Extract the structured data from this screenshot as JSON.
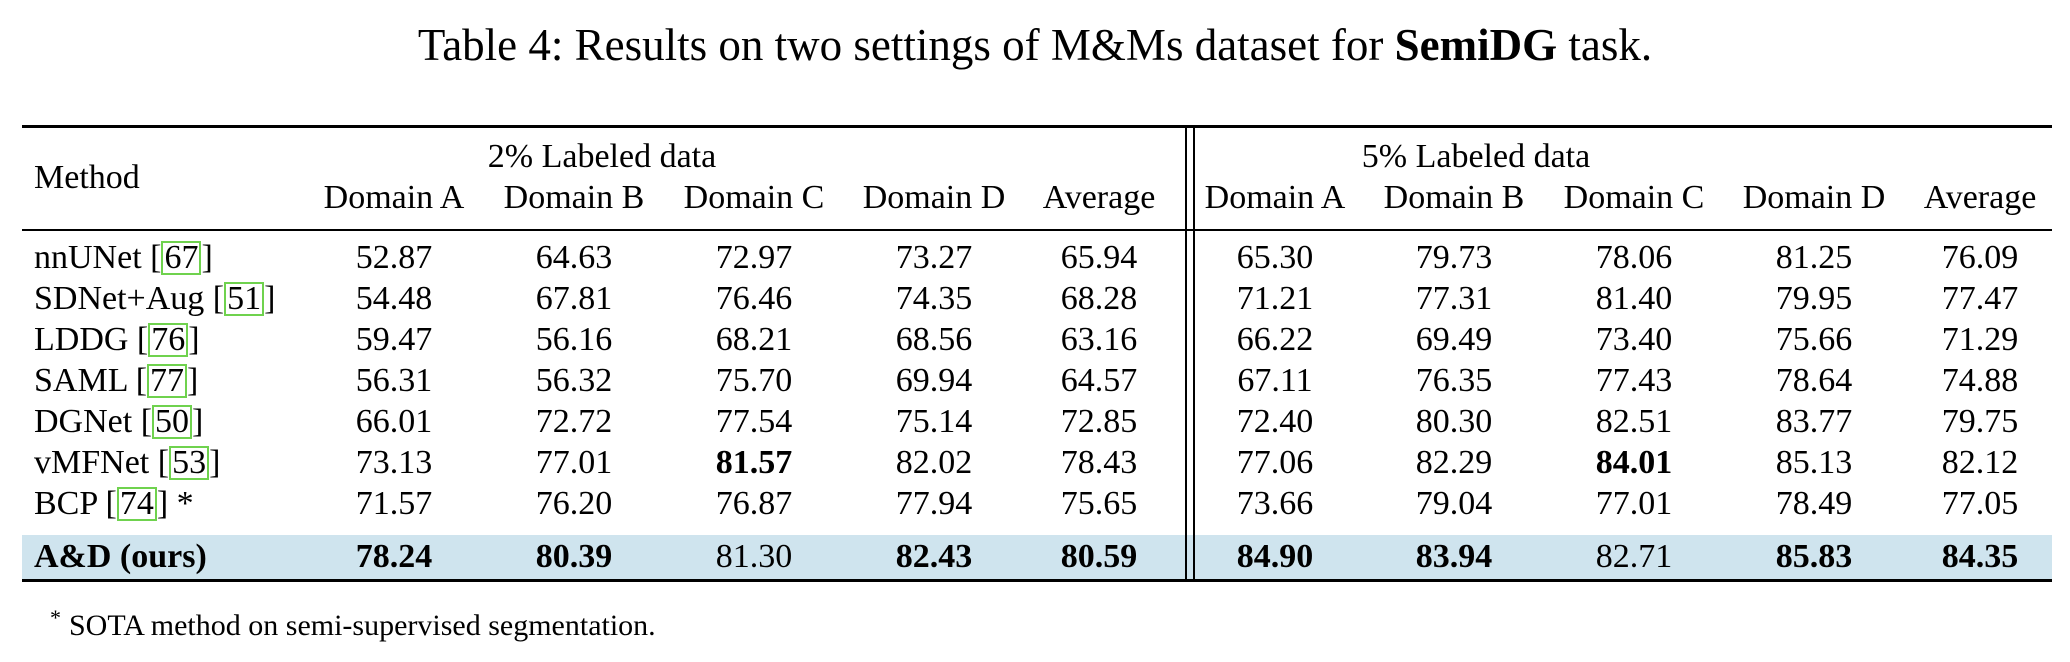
{
  "caption": {
    "prefix": "Table 4: Results on two settings of M&Ms dataset for ",
    "bold": "SemiDG",
    "suffix": " task."
  },
  "table": {
    "method_header": "Method",
    "group_headers": [
      "2% Labeled data",
      "5% Labeled data"
    ],
    "column_headers": [
      "Domain A",
      "Domain B",
      "Domain C",
      "Domain D",
      "Average",
      "Domain A",
      "Domain B",
      "Domain C",
      "Domain D",
      "Average"
    ],
    "rows": [
      {
        "name": "nnUNet [",
        "ref": "67",
        "tail": "]",
        "values": [
          "52.87",
          "64.63",
          "72.97",
          "73.27",
          "65.94",
          "65.30",
          "79.73",
          "78.06",
          "81.25",
          "76.09"
        ],
        "bold": []
      },
      {
        "name": "SDNet+Aug [",
        "ref": "51",
        "tail": "]",
        "values": [
          "54.48",
          "67.81",
          "76.46",
          "74.35",
          "68.28",
          "71.21",
          "77.31",
          "81.40",
          "79.95",
          "77.47"
        ],
        "bold": []
      },
      {
        "name": "LDDG [",
        "ref": "76",
        "tail": "]",
        "values": [
          "59.47",
          "56.16",
          "68.21",
          "68.56",
          "63.16",
          "66.22",
          "69.49",
          "73.40",
          "75.66",
          "71.29"
        ],
        "bold": []
      },
      {
        "name": "SAML [",
        "ref": "77",
        "tail": "]",
        "values": [
          "56.31",
          "56.32",
          "75.70",
          "69.94",
          "64.57",
          "67.11",
          "76.35",
          "77.43",
          "78.64",
          "74.88"
        ],
        "bold": []
      },
      {
        "name": "DGNet [",
        "ref": "50",
        "tail": "]",
        "values": [
          "66.01",
          "72.72",
          "77.54",
          "75.14",
          "72.85",
          "72.40",
          "80.30",
          "82.51",
          "83.77",
          "79.75"
        ],
        "bold": []
      },
      {
        "name": "vMFNet [",
        "ref": "53",
        "tail": "]",
        "values": [
          "73.13",
          "77.01",
          "81.57",
          "82.02",
          "78.43",
          "77.06",
          "82.29",
          "84.01",
          "85.13",
          "82.12"
        ],
        "bold": [
          2,
          7
        ]
      },
      {
        "name": "BCP [",
        "ref": "74",
        "tail": "] *",
        "values": [
          "71.57",
          "76.20",
          "76.87",
          "77.94",
          "75.65",
          "73.66",
          "79.04",
          "77.01",
          "78.49",
          "77.05"
        ],
        "bold": []
      },
      {
        "name": "A&D (ours)",
        "ref": "",
        "tail": "",
        "values": [
          "78.24",
          "80.39",
          "81.30",
          "82.43",
          "80.59",
          "84.90",
          "83.94",
          "82.71",
          "85.83",
          "84.35"
        ],
        "bold": [
          0,
          1,
          3,
          4,
          5,
          6,
          8,
          9
        ],
        "name_bold": true,
        "highlight": true
      }
    ]
  },
  "footnote": {
    "marker": "*",
    "text": "SOTA method on semi-supervised segmentation."
  },
  "colors": {
    "highlight_row": "#cfe4ee",
    "reference_box": "#6fd24e"
  }
}
